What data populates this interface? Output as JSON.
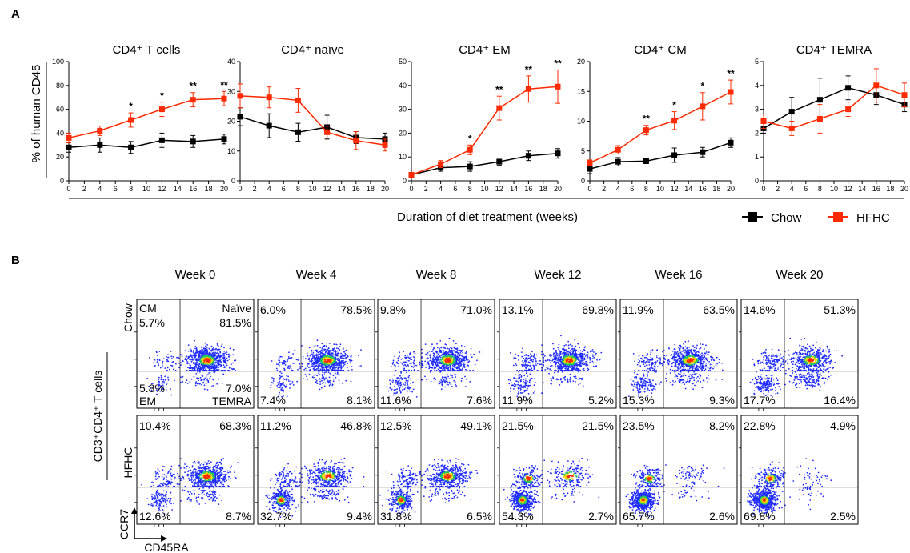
{
  "panel_a": {
    "label": "A",
    "ylabel": "% of human CD45",
    "xlabel": "Duration of diet treatment (weeks)",
    "legend": [
      {
        "name": "Chow",
        "color": "#000000"
      },
      {
        "name": "HFHC",
        "color": "#ff2a00"
      }
    ]
  },
  "chart_data": [
    {
      "type": "line",
      "title": "CD4⁺ T cells",
      "x": [
        0,
        4,
        8,
        12,
        16,
        20
      ],
      "xticks": [
        0,
        2,
        4,
        6,
        8,
        10,
        12,
        14,
        16,
        18,
        20
      ],
      "xlim": [
        0,
        20
      ],
      "ylim": [
        0,
        100
      ],
      "yticks": [
        0,
        20,
        40,
        60,
        80,
        100
      ],
      "series": [
        {
          "name": "Chow",
          "values": [
            28,
            30,
            28,
            34,
            33,
            35
          ],
          "err": [
            4,
            6,
            5,
            6,
            5,
            4
          ]
        },
        {
          "name": "HFHC",
          "values": [
            36,
            42,
            51,
            60,
            68,
            69
          ],
          "err": [
            4,
            4,
            6,
            6,
            6,
            6
          ]
        }
      ],
      "significance": [
        {
          "x": 8,
          "label": "*"
        },
        {
          "x": 12,
          "label": "*"
        },
        {
          "x": 16,
          "label": "**"
        },
        {
          "x": 20,
          "label": "**"
        }
      ]
    },
    {
      "type": "line",
      "title": "CD4⁺ naïve",
      "x": [
        0,
        4,
        8,
        12,
        16,
        20
      ],
      "xticks": [
        0,
        2,
        4,
        6,
        8,
        10,
        12,
        14,
        16,
        18,
        20
      ],
      "xlim": [
        0,
        20
      ],
      "ylim": [
        0,
        40
      ],
      "yticks": [
        0,
        10,
        20,
        30,
        40
      ],
      "series": [
        {
          "name": "Chow",
          "values": [
            21.5,
            18.5,
            16.3,
            18,
            14.5,
            14
          ],
          "err": [
            3,
            4,
            3,
            4,
            2,
            2
          ]
        },
        {
          "name": "HFHC",
          "values": [
            28.5,
            28,
            27,
            16.3,
            13.5,
            12
          ],
          "err": [
            4,
            3.5,
            4,
            2,
            3,
            2
          ]
        }
      ],
      "significance": []
    },
    {
      "type": "line",
      "title": "CD4⁺ EM",
      "x": [
        0,
        4,
        8,
        12,
        16,
        20
      ],
      "xticks": [
        0,
        2,
        4,
        6,
        8,
        10,
        12,
        14,
        16,
        18,
        20
      ],
      "xlim": [
        0,
        20
      ],
      "ylim": [
        0,
        50
      ],
      "yticks": [
        0,
        10,
        20,
        30,
        40,
        50
      ],
      "series": [
        {
          "name": "Chow",
          "values": [
            2.5,
            5.5,
            6,
            8,
            10.5,
            11.5
          ],
          "err": [
            0.5,
            1.5,
            2,
            1.5,
            2,
            2
          ]
        },
        {
          "name": "HFHC",
          "values": [
            2.5,
            7,
            13,
            30.5,
            38.5,
            39.5
          ],
          "err": [
            0.5,
            1.5,
            2,
            5,
            5.5,
            7
          ]
        }
      ],
      "significance": [
        {
          "x": 8,
          "label": "*"
        },
        {
          "x": 12,
          "label": "**"
        },
        {
          "x": 16,
          "label": "**"
        },
        {
          "x": 20,
          "label": "**"
        }
      ]
    },
    {
      "type": "line",
      "title": "CD4⁺ CM",
      "x": [
        0,
        4,
        8,
        12,
        16,
        20
      ],
      "xticks": [
        0,
        2,
        4,
        6,
        8,
        10,
        12,
        14,
        16,
        18,
        20
      ],
      "xlim": [
        0,
        20
      ],
      "ylim": [
        0,
        20
      ],
      "yticks": [
        0,
        5,
        10,
        15,
        20
      ],
      "series": [
        {
          "name": "Chow",
          "values": [
            2,
            3.2,
            3.3,
            4.3,
            4.8,
            6.4
          ],
          "err": [
            0.8,
            0.7,
            0.4,
            1.2,
            0.8,
            0.8
          ]
        },
        {
          "name": "HFHC",
          "values": [
            3,
            5.2,
            8.5,
            10.1,
            12.5,
            14.9
          ],
          "err": [
            0.5,
            0.7,
            0.8,
            1.5,
            2.3,
            2
          ]
        }
      ],
      "significance": [
        {
          "x": 8,
          "label": "**"
        },
        {
          "x": 12,
          "label": "*"
        },
        {
          "x": 16,
          "label": "*"
        },
        {
          "x": 20,
          "label": "**"
        }
      ]
    },
    {
      "type": "line",
      "title": "CD4⁺ TEMRA",
      "x": [
        0,
        4,
        8,
        12,
        16,
        20
      ],
      "xticks": [
        0,
        2,
        4,
        6,
        8,
        10,
        12,
        14,
        16,
        18,
        20
      ],
      "xlim": [
        0,
        20
      ],
      "ylim": [
        0,
        5
      ],
      "yticks": [
        0,
        1,
        2,
        3,
        4,
        5
      ],
      "series": [
        {
          "name": "Chow",
          "values": [
            2.2,
            2.9,
            3.4,
            3.9,
            3.6,
            3.2
          ],
          "err": [
            0.2,
            0.6,
            0.9,
            0.5,
            0.4,
            0.3
          ]
        },
        {
          "name": "HFHC",
          "values": [
            2.5,
            2.2,
            2.6,
            3.0,
            4.0,
            3.6
          ],
          "err": [
            0.3,
            0.3,
            0.6,
            0.3,
            0.7,
            0.5
          ]
        }
      ],
      "significance": []
    }
  ],
  "panel_b": {
    "label": "B",
    "y_title": "CD3⁺CD4⁺ T cells",
    "axis_y": "CCR7",
    "axis_x": "CD45RA",
    "weeks": [
      "Week 0",
      "Week 4",
      "Week 8",
      "Week 12",
      "Week 16",
      "Week 20"
    ],
    "rows": [
      {
        "name": "Chow",
        "plots": [
          {
            "tl": "5.7%",
            "tr": "81.5%",
            "bl": "5.8%",
            "br": "7.0%",
            "tl_name": "CM",
            "tr_name": "Naïve",
            "bl_name": "EM",
            "br_name": "TEMRA"
          },
          {
            "tl": "6.0%",
            "tr": "78.5%",
            "bl": "7.4%",
            "br": "8.1%"
          },
          {
            "tl": "9.8%",
            "tr": "71.0%",
            "bl": "11.6%",
            "br": "7.6%"
          },
          {
            "tl": "13.1%",
            "tr": "69.8%",
            "bl": "11.9%",
            "br": "5.2%"
          },
          {
            "tl": "11.9%",
            "tr": "63.5%",
            "bl": "15.3%",
            "br": "9.3%"
          },
          {
            "tl": "14.6%",
            "tr": "51.3%",
            "bl": "17.7%",
            "br": "16.4%"
          }
        ]
      },
      {
        "name": "HFHC",
        "plots": [
          {
            "tl": "10.4%",
            "tr": "68.3%",
            "bl": "12.6%",
            "br": "8.7%"
          },
          {
            "tl": "11.2%",
            "tr": "46.8%",
            "bl": "32.7%",
            "br": "9.4%"
          },
          {
            "tl": "12.5%",
            "tr": "49.1%",
            "bl": "31.8%",
            "br": "6.5%"
          },
          {
            "tl": "21.5%",
            "tr": "21.5%",
            "bl": "54.3%",
            "br": "2.7%"
          },
          {
            "tl": "23.5%",
            "tr": "8.2%",
            "bl": "65.7%",
            "br": "2.6%"
          },
          {
            "tl": "22.8%",
            "tr": "4.9%",
            "bl": "69.8%",
            "br": "2.5%"
          }
        ]
      }
    ]
  }
}
